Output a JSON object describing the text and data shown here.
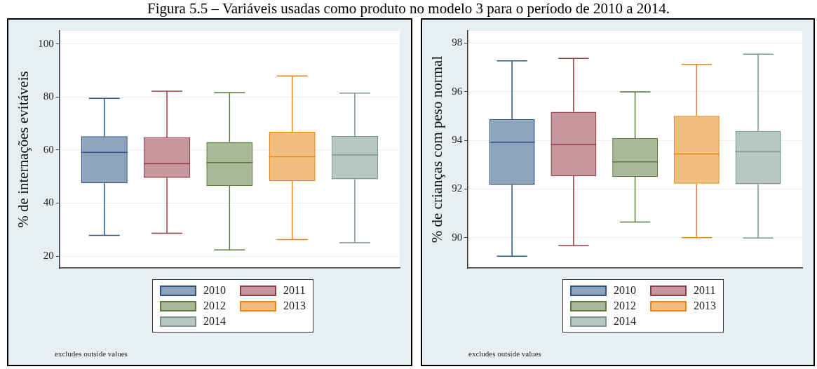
{
  "chart_data": [
    {
      "type": "box",
      "title": "Figura 5.5 – Variáveis usadas como produto no modelo 3 para o período de 2010 a 2014.",
      "ylabel": "% de internações evitáveis",
      "categories": [
        null
      ],
      "ylim": [
        15.5,
        105
      ],
      "yticks": [
        20,
        40,
        60,
        80,
        100
      ],
      "grid": "y",
      "legend": "bottom",
      "tick_labels": "y",
      "annotations": [
        "excludes outside values"
      ],
      "series": [
        {
          "name": "2010",
          "color": "#2b5281",
          "boxes": [
            {
              "low": 27.8,
              "q1": 47.5,
              "median": 59.1,
              "q3": 65.2,
              "high": 79.5
            }
          ]
        },
        {
          "name": "2011",
          "color": "#943c46",
          "boxes": [
            {
              "low": 28.6,
              "q1": 49.5,
              "median": 54.9,
              "q3": 64.8,
              "high": 82.2
            }
          ]
        },
        {
          "name": "2012",
          "color": "#5c7a3a",
          "boxes": [
            {
              "low": 22.3,
              "q1": 46.5,
              "median": 55.3,
              "q3": 63.0,
              "high": 81.7
            }
          ]
        },
        {
          "name": "2013",
          "color": "#e8860f",
          "boxes": [
            {
              "low": 26.2,
              "q1": 48.3,
              "median": 57.5,
              "q3": 66.9,
              "high": 88.0
            }
          ]
        },
        {
          "name": "2014",
          "color": "#7b968d",
          "boxes": [
            {
              "low": 25.0,
              "q1": 49.0,
              "median": 58.2,
              "q3": 65.3,
              "high": 81.5
            }
          ]
        }
      ]
    },
    {
      "type": "box",
      "ylabel": "% de crianças com peso normal",
      "categories": [
        null
      ],
      "ylim": [
        88.75,
        98.5
      ],
      "yticks": [
        90,
        92,
        94,
        96,
        98
      ],
      "grid": "y",
      "legend": "bottom",
      "tick_labels": "y",
      "annotations": [
        "excludes outside values"
      ],
      "series": [
        {
          "name": "2010",
          "color": "#2b5281",
          "boxes": [
            {
              "low": 89.23,
              "q1": 92.17,
              "median": 93.92,
              "q3": 94.87,
              "high": 97.27
            }
          ]
        },
        {
          "name": "2011",
          "color": "#943c46",
          "boxes": [
            {
              "low": 89.67,
              "q1": 92.53,
              "median": 93.83,
              "q3": 95.17,
              "high": 97.37
            }
          ]
        },
        {
          "name": "2012",
          "color": "#5c7a3a",
          "boxes": [
            {
              "low": 90.64,
              "q1": 92.49,
              "median": 93.11,
              "q3": 94.09,
              "high": 95.99
            }
          ]
        },
        {
          "name": "2013",
          "color": "#e8860f",
          "boxes": [
            {
              "low": 90.0,
              "q1": 92.22,
              "median": 93.44,
              "q3": 95.0,
              "high": 97.12
            }
          ]
        },
        {
          "name": "2014",
          "color": "#7b968d",
          "boxes": [
            {
              "low": 89.98,
              "q1": 92.2,
              "median": 93.53,
              "q3": 94.38,
              "high": 97.54
            }
          ]
        }
      ]
    }
  ]
}
